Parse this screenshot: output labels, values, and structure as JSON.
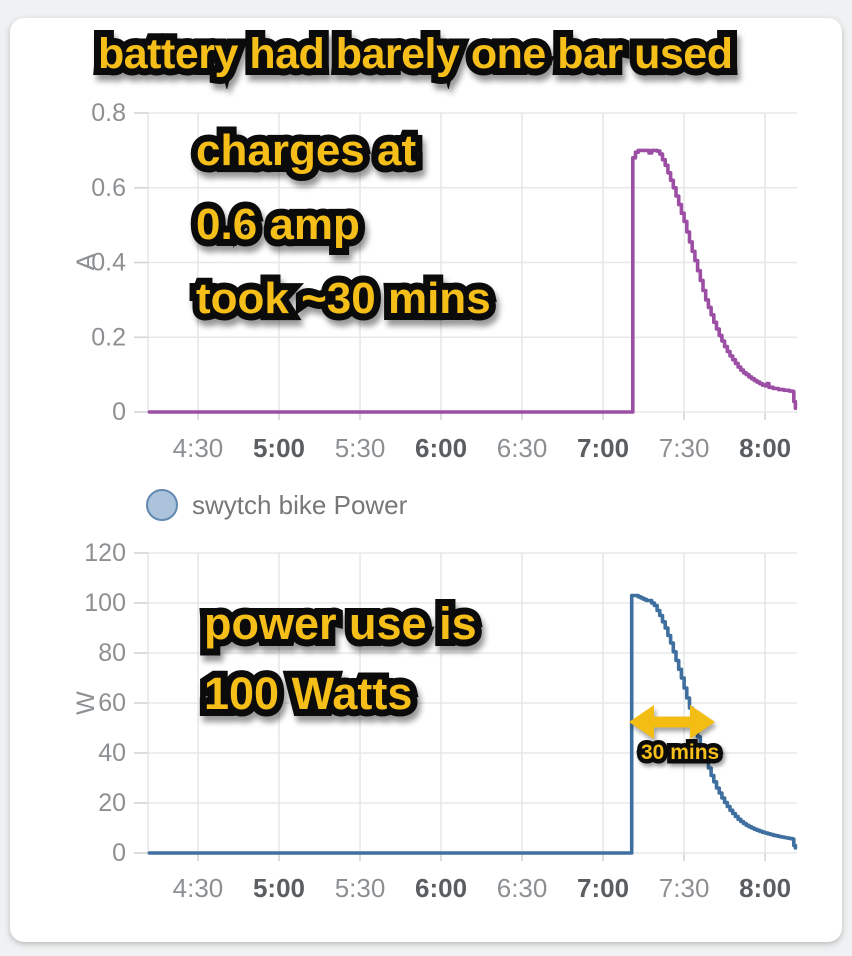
{
  "page": {
    "background_color": "#eff1f2",
    "card_color": "#ffffff"
  },
  "annotations": {
    "headline": "battery had barely one bar used",
    "chart1_notes": [
      "charges at",
      "0.6 amp",
      "took ~30 mins"
    ],
    "chart2_notes": [
      "power use is",
      "100 Watts"
    ],
    "duration_label": "30 mins",
    "text_color": "#f6be18",
    "outline_color": "#0b0b0b",
    "arrow_color": "#f3bd13"
  },
  "legend": {
    "label": "swytch bike Power",
    "marker_fill": "#abc4db",
    "marker_stroke": "#6289b0"
  },
  "axis_style": {
    "tick_label_color": "#8d9093",
    "bold_tick_label_color": "#5b5e61",
    "axis_title_color": "#8d9093",
    "grid_color": "#e7e8e9",
    "tick_mark_color": "#d2d4d5"
  },
  "chart_data": [
    {
      "type": "line",
      "name": "current",
      "ylabel": "A",
      "line_color": "#9b4ea3",
      "interpolation": "step-after",
      "grid": true,
      "ylim": [
        0,
        0.8
      ],
      "y_ticks": [
        {
          "v": 0,
          "label": "0"
        },
        {
          "v": 0.2,
          "label": "0.2"
        },
        {
          "v": 0.4,
          "label": "0.4"
        },
        {
          "v": 0.6,
          "label": "0.6"
        },
        {
          "v": 0.8,
          "label": "0.8"
        }
      ],
      "x_domain_minutes_after_4": [
        11.5,
        251.8
      ],
      "x_ticks": [
        {
          "m": 30,
          "label": "4:30",
          "bold": false
        },
        {
          "m": 60,
          "label": "5:00",
          "bold": true
        },
        {
          "m": 90,
          "label": "5:30",
          "bold": false
        },
        {
          "m": 120,
          "label": "6:00",
          "bold": true
        },
        {
          "m": 150,
          "label": "6:30",
          "bold": false
        },
        {
          "m": 180,
          "label": "7:00",
          "bold": true
        },
        {
          "m": 210,
          "label": "7:30",
          "bold": false
        },
        {
          "m": 240,
          "label": "8:00",
          "bold": true
        }
      ],
      "points": [
        [
          12,
          0
        ],
        [
          190,
          0
        ],
        [
          191,
          0.68
        ],
        [
          192,
          0.695
        ],
        [
          193,
          0.7
        ],
        [
          196,
          0.7
        ],
        [
          197,
          0.693
        ],
        [
          198,
          0.7
        ],
        [
          200,
          0.698
        ],
        [
          201,
          0.69
        ],
        [
          202,
          0.675
        ],
        [
          203,
          0.66
        ],
        [
          204,
          0.64
        ],
        [
          205,
          0.62
        ],
        [
          206,
          0.6
        ],
        [
          207,
          0.578
        ],
        [
          208,
          0.555
        ],
        [
          209,
          0.532
        ],
        [
          210,
          0.51
        ],
        [
          211,
          0.482
        ],
        [
          212,
          0.455
        ],
        [
          213,
          0.43
        ],
        [
          214,
          0.405
        ],
        [
          215,
          0.378
        ],
        [
          216,
          0.352
        ],
        [
          217,
          0.325
        ],
        [
          218,
          0.3
        ],
        [
          219,
          0.28
        ],
        [
          220,
          0.26
        ],
        [
          221,
          0.24
        ],
        [
          222,
          0.222
        ],
        [
          223,
          0.205
        ],
        [
          224,
          0.19
        ],
        [
          225,
          0.175
        ],
        [
          226,
          0.162
        ],
        [
          227,
          0.15
        ],
        [
          228,
          0.14
        ],
        [
          229,
          0.13
        ],
        [
          230,
          0.12
        ],
        [
          231,
          0.112
        ],
        [
          232,
          0.105
        ],
        [
          233,
          0.1
        ],
        [
          234,
          0.094
        ],
        [
          235,
          0.089
        ],
        [
          236,
          0.084
        ],
        [
          237,
          0.08
        ],
        [
          238,
          0.076
        ],
        [
          239,
          0.072
        ],
        [
          240,
          0.07
        ],
        [
          240.7,
          0.076
        ],
        [
          241.4,
          0.066
        ],
        [
          243,
          0.063
        ],
        [
          245,
          0.06
        ],
        [
          247,
          0.058
        ],
        [
          249,
          0.056
        ],
        [
          250,
          0.055
        ],
        [
          250.6,
          0.028
        ],
        [
          251.2,
          0.01
        ]
      ]
    },
    {
      "type": "line",
      "name": "swytch bike Power",
      "ylabel": "W",
      "line_color": "#3f6f9e",
      "interpolation": "step-after",
      "grid": true,
      "ylim": [
        0,
        120
      ],
      "y_ticks": [
        {
          "v": 0,
          "label": "0"
        },
        {
          "v": 20,
          "label": "20"
        },
        {
          "v": 40,
          "label": "40"
        },
        {
          "v": 60,
          "label": "60"
        },
        {
          "v": 80,
          "label": "80"
        },
        {
          "v": 100,
          "label": "100"
        },
        {
          "v": 120,
          "label": "120"
        }
      ],
      "x_domain_minutes_after_4": [
        11.5,
        251.8
      ],
      "x_ticks": [
        {
          "m": 30,
          "label": "4:30",
          "bold": false
        },
        {
          "m": 60,
          "label": "5:00",
          "bold": true
        },
        {
          "m": 90,
          "label": "5:30",
          "bold": false
        },
        {
          "m": 120,
          "label": "6:00",
          "bold": true
        },
        {
          "m": 150,
          "label": "6:30",
          "bold": false
        },
        {
          "m": 180,
          "label": "7:00",
          "bold": true
        },
        {
          "m": 210,
          "label": "7:30",
          "bold": false
        },
        {
          "m": 240,
          "label": "8:00",
          "bold": true
        }
      ],
      "points": [
        [
          12,
          0
        ],
        [
          190,
          0
        ],
        [
          190.6,
          103
        ],
        [
          192,
          103
        ],
        [
          193,
          102.5
        ],
        [
          194,
          102
        ],
        [
          195,
          101.5
        ],
        [
          196,
          101
        ],
        [
          197,
          101
        ],
        [
          198,
          100
        ],
        [
          199,
          99
        ],
        [
          200,
          97
        ],
        [
          201,
          95
        ],
        [
          202,
          92.5
        ],
        [
          203,
          90
        ],
        [
          204,
          87
        ],
        [
          205,
          84
        ],
        [
          206,
          80.5
        ],
        [
          207,
          77
        ],
        [
          208,
          73.5
        ],
        [
          209,
          70
        ],
        [
          210,
          66
        ],
        [
          211,
          62
        ],
        [
          212,
          58
        ],
        [
          213,
          54
        ],
        [
          214,
          50
        ],
        [
          215,
          46.5
        ],
        [
          216,
          43
        ],
        [
          217,
          40
        ],
        [
          218,
          37
        ],
        [
          219,
          34
        ],
        [
          220,
          31
        ],
        [
          221,
          28.5
        ],
        [
          222,
          26
        ],
        [
          223,
          24
        ],
        [
          224,
          22
        ],
        [
          225,
          20.2
        ],
        [
          226,
          18.6
        ],
        [
          227,
          17.1
        ],
        [
          228,
          15.8
        ],
        [
          229,
          14.6
        ],
        [
          230,
          13.5
        ],
        [
          231,
          12.6
        ],
        [
          232,
          11.8
        ],
        [
          233,
          11.1
        ],
        [
          234,
          10.5
        ],
        [
          235,
          10
        ],
        [
          236,
          9.5
        ],
        [
          237,
          9.1
        ],
        [
          238,
          8.7
        ],
        [
          239,
          8.3
        ],
        [
          240,
          8
        ],
        [
          241,
          7.7
        ],
        [
          242,
          7.4
        ],
        [
          243,
          7.1
        ],
        [
          244,
          6.9
        ],
        [
          245,
          6.6
        ],
        [
          246,
          6.4
        ],
        [
          247,
          6.2
        ],
        [
          248,
          6
        ],
        [
          249,
          5.8
        ],
        [
          250,
          5.6
        ],
        [
          250.6,
          3
        ],
        [
          251.2,
          2
        ]
      ],
      "duration_arrow": {
        "from_minute": 190,
        "to_minute": 220,
        "at_value": 52
      }
    }
  ]
}
